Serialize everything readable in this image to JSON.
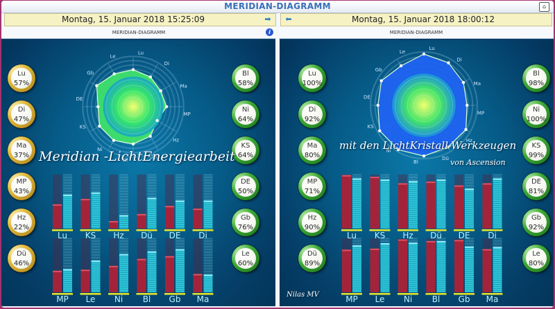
{
  "window": {
    "title": "MERIDIAN-DIAGRAMM"
  },
  "left": {
    "datetime": "Montag, 15. Januar 2018 15:25:09",
    "subtitle": "MERIDIAN-DIAGRAMM",
    "overlay_text": "Meridian -LichtEnergiearbeit",
    "badges_left": [
      {
        "label": "Lu",
        "value": "57%"
      },
      {
        "label": "Di",
        "value": "47%"
      },
      {
        "label": "Ma",
        "value": "37%"
      },
      {
        "label": "MP",
        "value": "43%"
      },
      {
        "label": "Hz",
        "value": "22%"
      },
      {
        "label": "Dü",
        "value": "46%"
      }
    ],
    "badges_right": [
      {
        "label": "Bl",
        "value": "58%"
      },
      {
        "label": "Ni",
        "value": "64%"
      },
      {
        "label": "KS",
        "value": "64%"
      },
      {
        "label": "DE",
        "value": "50%"
      },
      {
        "label": "Gb",
        "value": "76%"
      },
      {
        "label": "Le",
        "value": "60%"
      }
    ]
  },
  "right": {
    "datetime": "Montag, 15. Januar 2018 18:00:12",
    "subtitle": "MERIDIAN-DIAGRAMM",
    "overlay_text": "mit den LichtKristall-Werkzeugen",
    "overlay_sub": "von Ascension",
    "signature": "Nilas MV",
    "badges_left": [
      {
        "label": "Lu",
        "value": "100%"
      },
      {
        "label": "Di",
        "value": "92%"
      },
      {
        "label": "Ma",
        "value": "80%"
      },
      {
        "label": "MP",
        "value": "71%"
      },
      {
        "label": "Hz",
        "value": "90%"
      },
      {
        "label": "Dü",
        "value": "89%"
      }
    ],
    "badges_right": [
      {
        "label": "Bl",
        "value": "98%"
      },
      {
        "label": "Ni",
        "value": "100%"
      },
      {
        "label": "KS",
        "value": "99%"
      },
      {
        "label": "DE",
        "value": "81%"
      },
      {
        "label": "Gb",
        "value": "92%"
      },
      {
        "label": "Le",
        "value": "80%"
      }
    ]
  },
  "chart_data": [
    {
      "type": "bar",
      "panel": "left",
      "radar_labels": [
        "Lu",
        "Di",
        "Ma",
        "MP",
        "Hz",
        "Dü",
        "Bl",
        "Ni",
        "KS",
        "DE",
        "Gb",
        "Le"
      ],
      "radar_values": [
        57,
        47,
        37,
        43,
        22,
        46,
        58,
        64,
        64,
        50,
        76,
        60
      ],
      "categories_top": [
        "Lu",
        "KS",
        "Hz",
        "Dü",
        "DE",
        "Di"
      ],
      "categories_bottom": [
        "MP",
        "Le",
        "Ni",
        "Bl",
        "Gb",
        "Ma"
      ],
      "red_top": [
        0.45,
        0.55,
        0.14,
        0.27,
        0.42,
        0.37
      ],
      "cyan_top": [
        0.63,
        0.67,
        0.25,
        0.57,
        0.52,
        0.52
      ],
      "red_bottom": [
        0.4,
        0.42,
        0.49,
        0.62,
        0.67,
        0.34
      ],
      "cyan_bottom": [
        0.43,
        0.59,
        0.71,
        0.76,
        0.8,
        0.33
      ],
      "ylim": [
        0,
        1
      ]
    },
    {
      "type": "bar",
      "panel": "right",
      "radar_labels": [
        "Lu",
        "Di",
        "Ma",
        "MP",
        "Hz",
        "Dü",
        "Bl",
        "Ni",
        "KS",
        "DE",
        "Gb",
        "Le"
      ],
      "radar_values": [
        100,
        92,
        80,
        71,
        90,
        89,
        98,
        100,
        99,
        81,
        92,
        80
      ],
      "categories_top": [
        "Lu",
        "KS",
        "Hz",
        "Dü",
        "DE",
        "Di"
      ],
      "categories_bottom": [
        "MP",
        "Le",
        "Ni",
        "Bl",
        "Gb",
        "Ma"
      ],
      "red_top": [
        0.99,
        0.96,
        0.84,
        0.87,
        0.8,
        0.84
      ],
      "cyan_top": [
        0.93,
        0.91,
        0.88,
        0.91,
        0.74,
        0.93
      ],
      "red_bottom": [
        0.79,
        0.81,
        0.98,
        0.95,
        0.97,
        0.8
      ],
      "cyan_bottom": [
        0.87,
        0.91,
        0.92,
        0.95,
        0.85,
        0.84
      ],
      "ylim": [
        0,
        1
      ]
    }
  ]
}
